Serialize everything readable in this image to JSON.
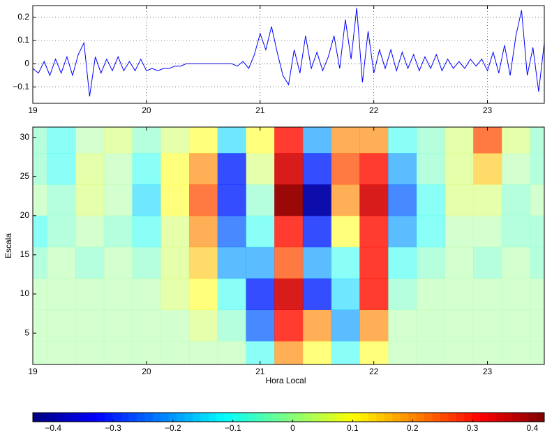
{
  "chart_data": [
    {
      "type": "line",
      "color": "#0000ff",
      "grid": true,
      "x": [
        19.0,
        19.05,
        19.1,
        19.15,
        19.2,
        19.25,
        19.3,
        19.35,
        19.4,
        19.45,
        19.5,
        19.55,
        19.6,
        19.65,
        19.7,
        19.75,
        19.8,
        19.85,
        19.9,
        19.95,
        20.0,
        20.05,
        20.1,
        20.15,
        20.2,
        20.25,
        20.3,
        20.35,
        20.4,
        20.45,
        20.5,
        20.55,
        20.6,
        20.65,
        20.7,
        20.75,
        20.8,
        20.85,
        20.9,
        20.95,
        21.0,
        21.05,
        21.1,
        21.15,
        21.2,
        21.25,
        21.3,
        21.35,
        21.4,
        21.45,
        21.5,
        21.55,
        21.6,
        21.65,
        21.7,
        21.75,
        21.8,
        21.85,
        21.9,
        21.95,
        22.0,
        22.05,
        22.1,
        22.15,
        22.2,
        22.25,
        22.3,
        22.35,
        22.4,
        22.45,
        22.5,
        22.55,
        22.6,
        22.65,
        22.7,
        22.75,
        22.8,
        22.85,
        22.9,
        22.95,
        23.0,
        23.05,
        23.1,
        23.15,
        23.2,
        23.25,
        23.3,
        23.35,
        23.4,
        23.45,
        23.5
      ],
      "values": [
        -0.02,
        -0.04,
        0.01,
        -0.05,
        0.02,
        -0.04,
        0.03,
        -0.05,
        0.04,
        0.09,
        -0.14,
        0.03,
        -0.04,
        0.02,
        -0.03,
        0.03,
        -0.03,
        0.01,
        -0.03,
        0.02,
        -0.03,
        -0.02,
        -0.03,
        -0.02,
        -0.02,
        -0.01,
        -0.01,
        0.0,
        0.0,
        0.0,
        0.0,
        0.0,
        0.0,
        0.0,
        0.0,
        0.0,
        -0.01,
        0.01,
        -0.02,
        0.04,
        0.13,
        0.06,
        0.16,
        0.05,
        -0.05,
        -0.09,
        0.06,
        -0.04,
        0.12,
        -0.02,
        0.05,
        -0.03,
        0.03,
        0.12,
        -0.02,
        0.19,
        0.02,
        0.24,
        -0.08,
        0.14,
        -0.04,
        0.06,
        -0.02,
        0.06,
        -0.03,
        0.05,
        -0.02,
        0.04,
        -0.03,
        0.03,
        -0.02,
        0.04,
        -0.03,
        0.02,
        -0.02,
        0.01,
        -0.02,
        0.02,
        -0.01,
        0.02,
        -0.03,
        0.05,
        -0.04,
        0.08,
        -0.05,
        0.12,
        0.23,
        -0.05,
        0.07,
        -0.12,
        0.09
      ],
      "xlim": [
        19,
        23.5
      ],
      "xticks": [
        19,
        20,
        21,
        22,
        23
      ],
      "ylim": [
        -0.17,
        0.25
      ],
      "yticks": [
        {
          "value": -0.1,
          "label": "−0.1"
        },
        0,
        0.1,
        0.2
      ]
    },
    {
      "type": "contour",
      "xlabel": "Hora Local",
      "ylabel": "Escala",
      "x_grid": [
        19,
        19.25,
        19.5,
        19.75,
        20,
        20.25,
        20.5,
        20.75,
        21,
        21.25,
        21.5,
        21.75,
        22,
        22.25,
        22.5,
        22.75,
        23,
        23.25,
        23.5
      ],
      "y_grid": [
        2,
        6,
        10,
        14,
        18,
        22,
        26,
        30
      ],
      "z": [
        [
          0,
          0,
          0,
          0,
          0,
          0,
          0,
          0,
          -0.1,
          0.2,
          0.1,
          -0.1,
          0.1,
          0,
          0,
          0,
          0,
          0,
          0
        ],
        [
          0,
          0,
          0,
          0,
          0,
          0,
          0.05,
          -0.05,
          -0.25,
          0.3,
          0.2,
          -0.2,
          0.2,
          0,
          0,
          0,
          0,
          0,
          0
        ],
        [
          0,
          0,
          0,
          0,
          0,
          0.05,
          0.1,
          -0.1,
          -0.3,
          0.35,
          -0.3,
          -0.15,
          0.3,
          -0.05,
          0,
          0,
          0,
          0,
          0
        ],
        [
          -0.05,
          0,
          -0.05,
          0,
          -0.05,
          0.05,
          0.15,
          -0.2,
          -0.2,
          0.25,
          -0.2,
          -0.1,
          0.3,
          -0.1,
          -0.05,
          0,
          -0.05,
          0,
          -0.05
        ],
        [
          -0.1,
          -0.05,
          0,
          -0.05,
          -0.1,
          0.05,
          0.2,
          -0.25,
          -0.1,
          0.3,
          -0.3,
          0.1,
          0.3,
          -0.2,
          -0.1,
          0,
          0,
          -0.05,
          -0.05
        ],
        [
          0,
          -0.05,
          0.05,
          0,
          -0.15,
          0.1,
          0.25,
          -0.3,
          -0.05,
          0.4,
          -0.4,
          0.2,
          0.35,
          -0.25,
          -0.1,
          0.05,
          0.05,
          -0.05,
          0
        ],
        [
          -0.05,
          -0.1,
          0.05,
          0,
          -0.1,
          0.1,
          0.2,
          -0.3,
          0.05,
          0.35,
          -0.3,
          0.25,
          0.3,
          -0.2,
          -0.05,
          0.05,
          0.15,
          0,
          -0.05
        ],
        [
          -0.05,
          -0.1,
          0,
          0.05,
          -0.05,
          0.05,
          0.1,
          -0.15,
          0.1,
          0.3,
          -0.2,
          0.2,
          0.2,
          -0.1,
          -0.05,
          0.05,
          0.25,
          0.05,
          -0.05
        ]
      ],
      "clim": [
        -0.434,
        0.42
      ],
      "xlim": [
        19,
        23.5
      ],
      "xticks": [
        19,
        20,
        21,
        22,
        23
      ],
      "ylim": [
        1,
        31.3
      ],
      "yticks": [
        5,
        10,
        15,
        20,
        25,
        30
      ]
    },
    {
      "type": "colorbar",
      "colormap": "jet",
      "xlim": [
        -0.434,
        0.42
      ],
      "xticks": [
        {
          "value": -0.4,
          "label": "−0.4"
        },
        {
          "value": -0.3,
          "label": "−0.3"
        },
        {
          "value": -0.2,
          "label": "−0.2"
        },
        {
          "value": -0.1,
          "label": "−0.1"
        },
        0,
        0.1,
        0.2,
        0.3,
        0.4
      ]
    }
  ]
}
